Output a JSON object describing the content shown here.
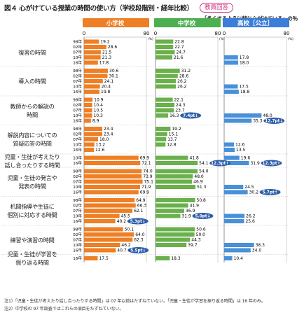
{
  "title": "図４ 心がけている授業の時間の使い方（学校段階別・経年比較）",
  "respondent_badge": "教員回答",
  "legend_text": "「多くするように特に心がけている」の％",
  "notes": [
    "注1）「児童・生徒が考えたり話し合ったりする時間」は 07 年以前はたずねていない。「児童・生徒が学習を振り返る時間」は 16 年のみ。",
    "注2）中学校の 97 年調査ではこれらの項目をたずねていない。"
  ],
  "colors": {
    "elementary": "#ee7f24",
    "junior_high": "#6ab04c",
    "high": "#4a90d9",
    "annotation": "#2e5da8",
    "grid": "#bbbbbb"
  },
  "chart_data": {
    "type": "bar",
    "orientation": "horizontal",
    "unit": "%",
    "xlim": [
      0,
      80
    ],
    "axis_ticks": [
      "0",
      "80"
    ],
    "axis_unit_label": "(%)",
    "panels": [
      "小学校",
      "中学校",
      "高校［公立］"
    ],
    "categories": [
      {
        "label_lines": [
          "復習の時間"
        ],
        "years": [
          "98年",
          "02年",
          "07年",
          "10年",
          "16年"
        ],
        "elementary": [
          19.2,
          28.6,
          21.5,
          21.3,
          17.8
        ],
        "junior_high": [
          22.8,
          22.7,
          24.7,
          21.6,
          null
        ],
        "high": [
          null,
          null,
          null,
          17.8,
          18.0
        ]
      },
      {
        "label_lines": [
          "導入の時間"
        ],
        "years": [
          "98年",
          "02年",
          "07年",
          "10年",
          "16年"
        ],
        "elementary": [
          30.6,
          30.1,
          24.1,
          20.4,
          19.8
        ],
        "junior_high": [
          31.2,
          28.6,
          26.2,
          26.2,
          null
        ],
        "high": [
          null,
          null,
          null,
          17.5,
          18.8
        ]
      },
      {
        "label_lines": [
          "教師からの解説の",
          "時間"
        ],
        "years": [
          "98年",
          "02年",
          "07年",
          "10年",
          "16年"
        ],
        "elementary": [
          10.9,
          10.4,
          10.5,
          10.3,
          8.9
        ],
        "junior_high": [
          22.1,
          24.3,
          23.7,
          16.3,
          null
        ],
        "high": [
          null,
          null,
          null,
          48.0,
          35.3
        ]
      },
      {
        "label_lines": [
          "解説内容についての",
          "質疑応答の時間"
        ],
        "years": [
          "98年",
          "02年",
          "07年",
          "10年",
          "16年"
        ],
        "elementary": [
          23.4,
          23.4,
          18.0,
          13.2,
          12.6
        ],
        "junior_high": [
          19.2,
          15.1,
          13.7,
          12.8,
          null
        ],
        "high": [
          null,
          null,
          null,
          12.6,
          13.5
        ]
      },
      {
        "label_lines": [
          "児童・生徒が考えたり",
          "話し合ったりする時間"
        ],
        "years": [
          "10年",
          "16年"
        ],
        "elementary": [
          69.9,
          72.1
        ],
        "junior_high": [
          41.8,
          54.1
        ],
        "high": [
          19.6,
          31.9
        ]
      },
      {
        "label_lines": [
          "児童・生徒の発言や",
          "発表の時間"
        ],
        "years": [
          "98年",
          "02年",
          "07年",
          "10年",
          "16年"
        ],
        "elementary": [
          74.0,
          73.9,
          75.1,
          71.9,
          69.9
        ],
        "junior_high": [
          54.0,
          48.0,
          46.9,
          51.3,
          null
        ],
        "high": [
          null,
          null,
          null,
          24.5,
          30.2
        ]
      },
      {
        "label_lines": [
          "机間指導や生徒に",
          "個別に対応する時間"
        ],
        "years": [
          "98年",
          "02年",
          "07年",
          "10年",
          "16年"
        ],
        "elementary": [
          64.9,
          66.3,
          62.1,
          45.5,
          40.2
        ],
        "junior_high": [
          50.8,
          41.9,
          36.9,
          31.9,
          null
        ],
        "high": [
          null,
          null,
          null,
          26.2,
          25.6
        ]
      },
      {
        "label_lines": [
          "練習や演習の時間"
        ],
        "years": [
          "98年",
          "02年",
          "07年",
          "10年",
          "16年"
        ],
        "elementary": [
          50.1,
          64.0,
          62.3,
          46.2,
          40.7
        ],
        "junior_high": [
          50.6,
          50.0,
          44.3,
          39.7,
          null
        ],
        "high": [
          null,
          null,
          null,
          38.3,
          34.0
        ]
      },
      {
        "label_lines": [
          "児童・生徒が学習を",
          "振り返る時間"
        ],
        "years": [
          "16年"
        ],
        "elementary": [
          17.5
        ],
        "junior_high": [
          18.3
        ],
        "high": [
          10.4
        ]
      }
    ],
    "annotations": [
      {
        "panel": "junior_high",
        "category": 2,
        "text": "7.4pt↓"
      },
      {
        "panel": "high",
        "category": 2,
        "text": "12.7pt↓"
      },
      {
        "panel": "junior_high",
        "category": 4,
        "text": "12.3pt↑"
      },
      {
        "panel": "high",
        "category": 4,
        "text": "12.3pt↑"
      },
      {
        "panel": "high",
        "category": 5,
        "text": "5.7pt↑"
      },
      {
        "panel": "elementary",
        "category": 6,
        "text": "5.3pt↓"
      },
      {
        "panel": "junior_high",
        "category": 6,
        "text": "5.0pt↓"
      },
      {
        "panel": "elementary",
        "category": 7,
        "text": "5.5pt↓"
      }
    ]
  }
}
